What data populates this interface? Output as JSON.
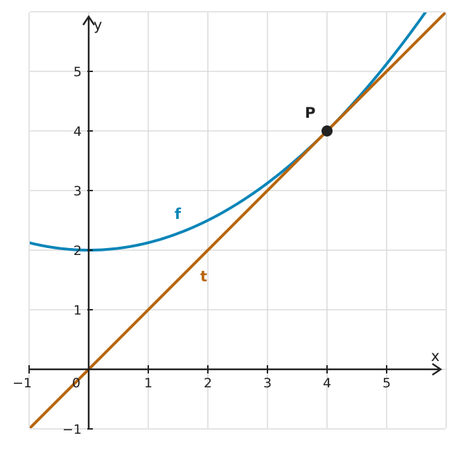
{
  "chart_data": {
    "type": "line",
    "xlabel": "x",
    "ylabel": "y",
    "xlim": [
      -1,
      6
    ],
    "ylim": [
      -1,
      6
    ],
    "grid": true,
    "x_ticks": [
      {
        "value": -1,
        "label": "−1"
      },
      {
        "value": 1,
        "label": "1"
      },
      {
        "value": 2,
        "label": "2"
      },
      {
        "value": 3,
        "label": "3"
      },
      {
        "value": 4,
        "label": "4"
      },
      {
        "value": 5,
        "label": "5"
      }
    ],
    "y_ticks": [
      {
        "value": -1,
        "label": "−1"
      },
      {
        "value": 1,
        "label": "1"
      },
      {
        "value": 2,
        "label": "2"
      },
      {
        "value": 3,
        "label": "3"
      },
      {
        "value": 4,
        "label": "4"
      },
      {
        "value": 5,
        "label": "5"
      }
    ],
    "origin_label": "0",
    "series": [
      {
        "name": "f",
        "color": "#0a85b8",
        "x": [
          -1,
          -0.5,
          0,
          0.5,
          1,
          1.5,
          2,
          2.5,
          3,
          3.5,
          4,
          4.5,
          5,
          5.5,
          5.8
        ],
        "y": [
          2.13,
          2.03,
          2.0,
          2.03,
          2.13,
          2.28,
          2.5,
          2.78,
          3.13,
          3.53,
          4.0,
          4.53,
          5.13,
          5.78,
          6.2
        ]
      },
      {
        "name": "t",
        "color": "#b8640a",
        "x": [
          -1,
          6
        ],
        "y": [
          -1,
          6
        ]
      }
    ],
    "points": [
      {
        "label": "P",
        "x": 4,
        "y": 4,
        "color": "#222222"
      }
    ]
  }
}
